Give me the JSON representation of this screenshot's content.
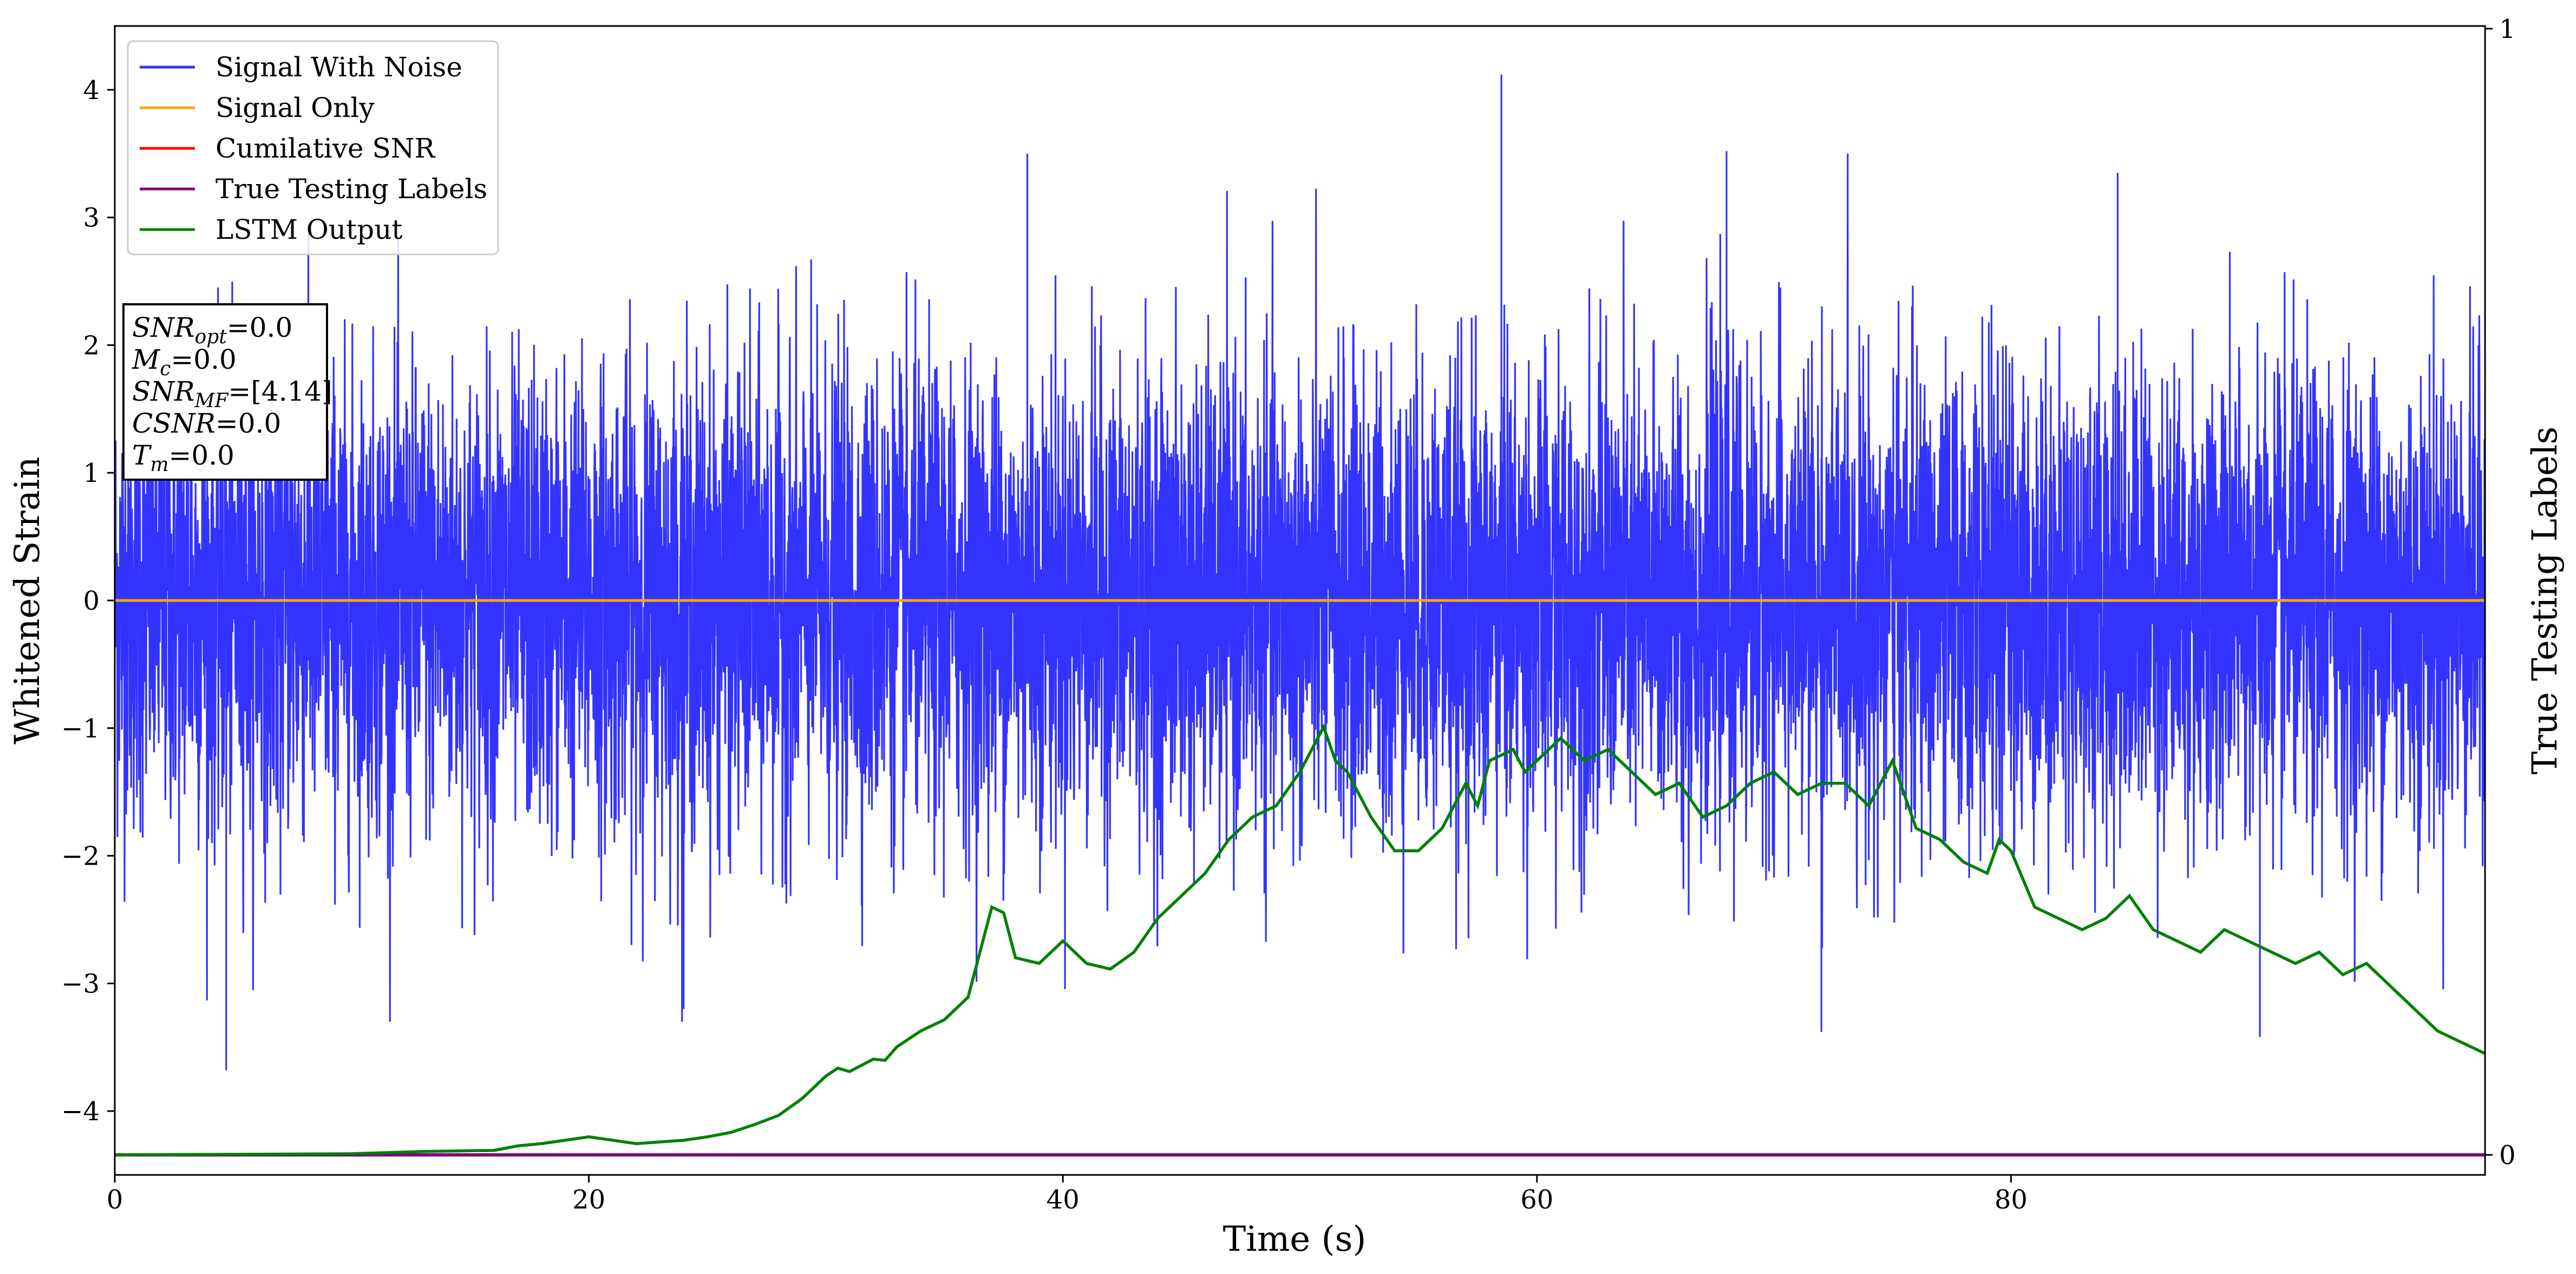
{
  "chart_data": {
    "type": "line",
    "xlabel": "Time (s)",
    "ylabel": "Whitened Strain",
    "y2label": "True Testing Labels",
    "xlim": [
      0,
      100
    ],
    "ylim": [
      -4.5,
      4.5
    ],
    "y2lim": [
      0,
      1
    ],
    "xticks": [
      "0",
      "20",
      "40",
      "60",
      "80"
    ],
    "xtick_values": [
      0,
      20,
      40,
      60,
      80
    ],
    "yticks": [
      "4",
      "3",
      "2",
      "1",
      "0",
      "−1",
      "−2",
      "−3",
      "−4"
    ],
    "ytick_values": [
      4,
      3,
      2,
      1,
      0,
      -1,
      -2,
      -3,
      -4
    ],
    "y2ticks": [
      "1",
      "0"
    ],
    "y2tick_values": [
      1,
      0
    ],
    "legend_position": "top-left",
    "series": [
      {
        "name": "Signal With Noise",
        "color": "#3333ff",
        "style": "dense noise, approx. range -3.7 to 4.1",
        "noise_std": 0.9,
        "peak_max": 4.12,
        "peak_min": -3.68
      },
      {
        "name": "Signal Only",
        "color": "#ffa500",
        "y": 0
      },
      {
        "name": "Cumilative SNR",
        "color": "#ff0000"
      },
      {
        "name": "True Testing Labels",
        "color": "#800080",
        "y": 0
      },
      {
        "name": "LSTM Output",
        "color": "#008000",
        "axis": "y2",
        "x": [
          0,
          10,
          13,
          16,
          17,
          18,
          19,
          20,
          22,
          24,
          25,
          26,
          27,
          28,
          29,
          30,
          30.5,
          31,
          32,
          32.5,
          33,
          34,
          35,
          35.5,
          36,
          36.5,
          37,
          37.5,
          38,
          39,
          40,
          41,
          42,
          43,
          44,
          45,
          46,
          47,
          48,
          49,
          50,
          51,
          51.5,
          52,
          53,
          54,
          55,
          56,
          57,
          57.5,
          58,
          59,
          59.5,
          60,
          61,
          62,
          63,
          64,
          65,
          66,
          67,
          68,
          69,
          70,
          71,
          72,
          73,
          74,
          75,
          76,
          77,
          78,
          79,
          79.5,
          80,
          81,
          82,
          83,
          84,
          85,
          86,
          87,
          88,
          89,
          90,
          91,
          92,
          93,
          94,
          95,
          96,
          97,
          98,
          99,
          100
        ],
        "y": [
          0.0,
          0.001,
          0.003,
          0.004,
          0.008,
          0.01,
          0.013,
          0.016,
          0.01,
          0.013,
          0.016,
          0.02,
          0.027,
          0.035,
          0.05,
          0.07,
          0.077,
          0.074,
          0.085,
          0.084,
          0.096,
          0.11,
          0.12,
          0.13,
          0.14,
          0.18,
          0.22,
          0.215,
          0.175,
          0.17,
          0.19,
          0.17,
          0.165,
          0.18,
          0.21,
          0.23,
          0.25,
          0.28,
          0.3,
          0.31,
          0.34,
          0.38,
          0.35,
          0.34,
          0.3,
          0.27,
          0.27,
          0.29,
          0.33,
          0.31,
          0.35,
          0.36,
          0.34,
          0.35,
          0.37,
          0.35,
          0.36,
          0.34,
          0.32,
          0.33,
          0.3,
          0.31,
          0.33,
          0.34,
          0.32,
          0.33,
          0.33,
          0.31,
          0.35,
          0.29,
          0.28,
          0.26,
          0.25,
          0.28,
          0.27,
          0.22,
          0.21,
          0.2,
          0.21,
          0.23,
          0.2,
          0.19,
          0.18,
          0.2,
          0.19,
          0.18,
          0.17,
          0.18,
          0.16,
          0.17,
          0.15,
          0.13,
          0.11,
          0.1,
          0.09
        ]
      }
    ]
  },
  "legend": {
    "items": [
      {
        "label": "Signal With Noise",
        "color": "#3333ff"
      },
      {
        "label": "Signal Only",
        "color": "#ffa500"
      },
      {
        "label": "Cumilative SNR",
        "color": "#ff0000"
      },
      {
        "label": "True Testing Labels",
        "color": "#800080"
      },
      {
        "label": "LSTM Output",
        "color": "#008000"
      }
    ]
  },
  "info_box": {
    "lines": [
      {
        "sym": "SNR",
        "sub": "opt",
        "value": "=0.0"
      },
      {
        "sym": "M",
        "sub": "c",
        "value": "=0.0"
      },
      {
        "sym": "SNR",
        "sub": "MF",
        "value": "=[4.14]"
      },
      {
        "sym": "CSNR",
        "sub": "",
        "value": "=0.0"
      },
      {
        "sym": "T",
        "sub": "m",
        "value": "=0.0"
      }
    ]
  }
}
